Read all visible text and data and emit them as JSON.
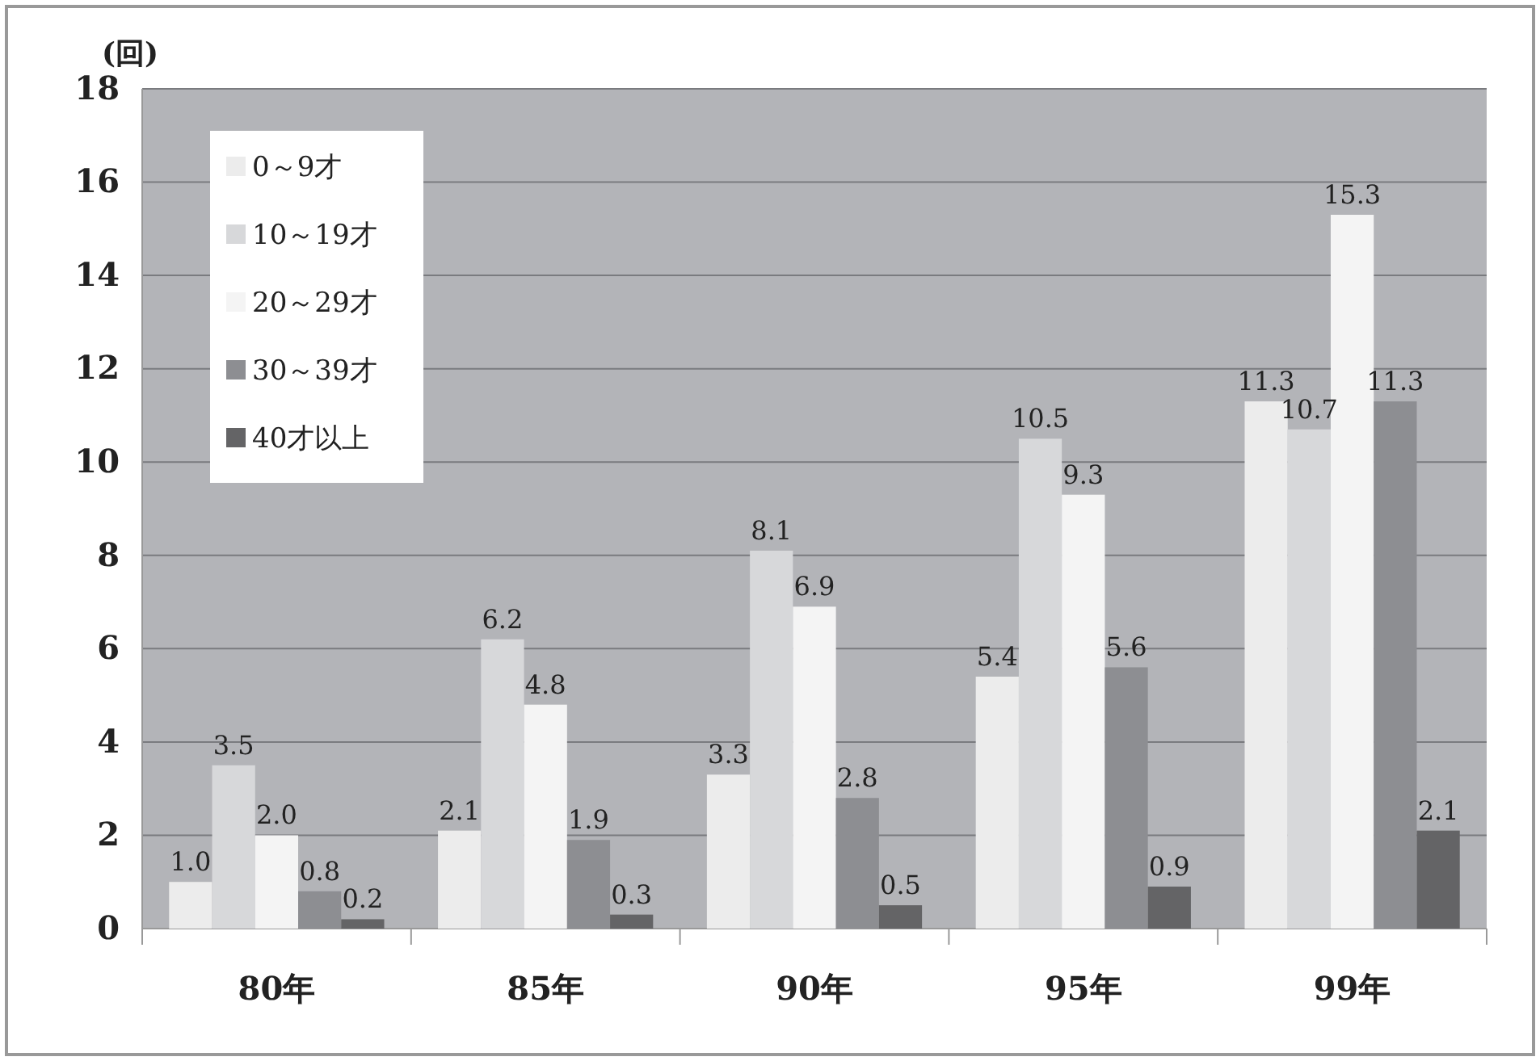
{
  "chart_data": {
    "type": "bar",
    "ylabel": "(回)",
    "categories": [
      "80年",
      "85年",
      "90年",
      "95年",
      "99年"
    ],
    "series": [
      {
        "name": "0～9才",
        "color": "#ececec",
        "values": [
          1.0,
          2.1,
          3.3,
          5.4,
          11.3
        ],
        "value_labels": [
          "1.0",
          "2.1",
          "3.3",
          "5.4",
          "11.3"
        ]
      },
      {
        "name": "10～19才",
        "color": "#d7d8da",
        "values": [
          3.5,
          6.2,
          8.1,
          10.5,
          10.7
        ],
        "value_labels": [
          "3.5",
          "6.2",
          "8.1",
          "10.5",
          "10.7"
        ]
      },
      {
        "name": "20～29才",
        "color": "#f4f4f4",
        "values": [
          2.0,
          4.8,
          6.9,
          9.3,
          15.3
        ],
        "value_labels": [
          "2.0",
          "4.8",
          "6.9",
          "9.3",
          "15.3"
        ]
      },
      {
        "name": "30～39才",
        "color": "#8d8e92",
        "values": [
          0.8,
          1.9,
          2.8,
          5.6,
          11.3
        ],
        "value_labels": [
          "0.8",
          "1.9",
          "2.8",
          "5.6",
          "11.3"
        ]
      },
      {
        "name": "40才以上",
        "color": "#646466",
        "values": [
          0.2,
          0.3,
          0.5,
          0.9,
          2.1
        ],
        "value_labels": [
          "0.2",
          "0.3",
          "0.5",
          "0.9",
          "2.1"
        ]
      }
    ],
    "ylim": [
      0,
      18
    ],
    "yticks": [
      0,
      2,
      4,
      6,
      8,
      10,
      12,
      14,
      16,
      18
    ],
    "grid": "y",
    "legend": "top left"
  }
}
